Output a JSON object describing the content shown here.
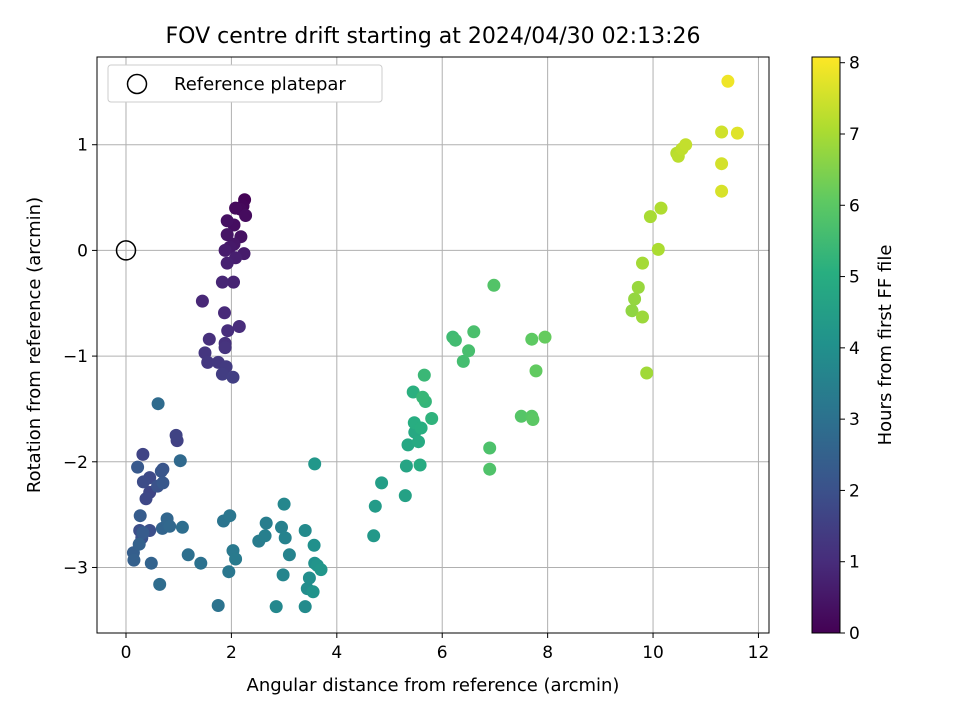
{
  "chart_data": {
    "type": "scatter",
    "title": "FOV centre drift starting at 2024/04/30 02:13:26",
    "xlabel": "Angular distance from reference (arcmin)",
    "ylabel": "Rotation from reference (arcmin)",
    "colorbar_label": "Hours from first FF file",
    "xlim": [
      -0.55,
      12.2
    ],
    "ylim": [
      -3.62,
      1.83
    ],
    "xticks": [
      0,
      2,
      4,
      6,
      8,
      10,
      12
    ],
    "xtick_labels": [
      "0",
      "2",
      "4",
      "6",
      "8",
      "10",
      "12"
    ],
    "yticks": [
      -3,
      -2,
      -1,
      0,
      1
    ],
    "ytick_labels": [
      "−3",
      "−2",
      "−1",
      "0",
      "1"
    ],
    "clim": [
      0,
      8.08
    ],
    "cticks": [
      0,
      1,
      2,
      3,
      4,
      5,
      6,
      7,
      8
    ],
    "ctick_labels": [
      "0",
      "1",
      "2",
      "3",
      "4",
      "5",
      "6",
      "7",
      "8"
    ],
    "colormap": "viridis",
    "grid": true,
    "legend": {
      "placement": "top-left",
      "entries": [
        "Reference platepar"
      ]
    },
    "reference_point": {
      "x": 0,
      "y": 0,
      "label": "Reference platepar"
    },
    "points": [
      [
        2.25,
        0.48,
        0.05
      ],
      [
        2.22,
        0.42,
        0.1
      ],
      [
        2.17,
        0.39,
        0.15
      ],
      [
        2.08,
        0.4,
        0.2
      ],
      [
        2.27,
        0.33,
        0.25
      ],
      [
        2.05,
        0.24,
        0.3
      ],
      [
        1.92,
        0.28,
        0.35
      ],
      [
        2.18,
        0.13,
        0.4
      ],
      [
        1.92,
        0.15,
        0.45
      ],
      [
        2.05,
        0.06,
        0.5
      ],
      [
        1.97,
        0.03,
        0.55
      ],
      [
        2.24,
        -0.03,
        0.6
      ],
      [
        1.88,
        0.0,
        0.65
      ],
      [
        2.08,
        -0.07,
        0.7
      ],
      [
        1.92,
        -0.12,
        0.75
      ],
      [
        2.04,
        -0.3,
        0.8
      ],
      [
        1.83,
        -0.3,
        0.85
      ],
      [
        1.45,
        -0.48,
        0.9
      ],
      [
        1.87,
        -0.59,
        0.95
      ],
      [
        2.15,
        -0.72,
        1.0
      ],
      [
        1.93,
        -0.76,
        1.05
      ],
      [
        1.58,
        -0.84,
        1.1
      ],
      [
        1.88,
        -0.88,
        1.15
      ],
      [
        1.88,
        -0.92,
        1.2
      ],
      [
        1.5,
        -0.97,
        1.25
      ],
      [
        1.55,
        -1.06,
        1.3
      ],
      [
        1.75,
        -1.06,
        1.35
      ],
      [
        1.9,
        -1.1,
        1.4
      ],
      [
        1.83,
        -1.17,
        1.45
      ],
      [
        2.03,
        -1.2,
        1.5
      ],
      [
        0.97,
        -1.8,
        1.55
      ],
      [
        0.95,
        -1.75,
        1.6
      ],
      [
        0.32,
        -1.93,
        1.65
      ],
      [
        0.45,
        -2.29,
        1.7
      ],
      [
        0.38,
        -2.35,
        1.75
      ],
      [
        0.45,
        -2.15,
        1.8
      ],
      [
        0.33,
        -2.19,
        1.85
      ],
      [
        0.26,
        -2.65,
        1.9
      ],
      [
        0.45,
        -2.65,
        1.95
      ],
      [
        0.3,
        -2.72,
        2.0
      ],
      [
        0.6,
        -2.23,
        2.05
      ],
      [
        0.7,
        -2.07,
        2.1
      ],
      [
        0.67,
        -2.09,
        2.15
      ],
      [
        0.7,
        -2.2,
        2.2
      ],
      [
        0.22,
        -2.05,
        2.25
      ],
      [
        0.32,
        -2.67,
        2.3
      ],
      [
        0.27,
        -2.51,
        2.35
      ],
      [
        0.14,
        -2.86,
        2.4
      ],
      [
        0.15,
        -2.93,
        2.45
      ],
      [
        0.25,
        -2.78,
        2.5
      ],
      [
        0.48,
        -2.96,
        2.55
      ],
      [
        0.69,
        -2.63,
        2.6
      ],
      [
        0.78,
        -2.54,
        2.65
      ],
      [
        0.83,
        -2.61,
        2.7
      ],
      [
        1.03,
        -1.99,
        2.75
      ],
      [
        0.61,
        -1.45,
        2.8
      ],
      [
        0.64,
        -3.16,
        2.85
      ],
      [
        1.07,
        -2.62,
        2.9
      ],
      [
        1.18,
        -2.88,
        2.95
      ],
      [
        1.42,
        -2.96,
        3.0
      ],
      [
        1.75,
        -3.36,
        3.05
      ],
      [
        1.85,
        -2.56,
        3.1
      ],
      [
        1.97,
        -2.51,
        3.15
      ],
      [
        1.95,
        -3.04,
        3.2
      ],
      [
        2.03,
        -2.84,
        3.25
      ],
      [
        2.08,
        -2.92,
        3.3
      ],
      [
        2.52,
        -2.75,
        3.35
      ],
      [
        2.66,
        -2.58,
        3.4
      ],
      [
        2.64,
        -2.7,
        3.45
      ],
      [
        2.95,
        -2.62,
        3.5
      ],
      [
        3.02,
        -2.72,
        3.55
      ],
      [
        3.1,
        -2.88,
        3.6
      ],
      [
        2.98,
        -3.07,
        3.65
      ],
      [
        3.0,
        -2.4,
        3.7
      ],
      [
        2.85,
        -3.37,
        3.75
      ],
      [
        3.4,
        -2.65,
        3.8
      ],
      [
        3.4,
        -3.37,
        3.85
      ],
      [
        3.44,
        -3.2,
        3.9
      ],
      [
        3.48,
        -3.1,
        3.95
      ],
      [
        3.57,
        -2.79,
        4.0
      ],
      [
        3.58,
        -2.96,
        4.05
      ],
      [
        3.55,
        -3.23,
        4.1
      ],
      [
        3.63,
        -2.98,
        4.15
      ],
      [
        3.7,
        -3.02,
        4.2
      ],
      [
        3.58,
        -2.02,
        4.25
      ],
      [
        4.7,
        -2.7,
        4.3
      ],
      [
        4.73,
        -2.42,
        4.4
      ],
      [
        4.85,
        -2.2,
        4.5
      ],
      [
        5.3,
        -2.32,
        4.6
      ],
      [
        5.32,
        -2.04,
        4.7
      ],
      [
        5.35,
        -1.84,
        4.8
      ],
      [
        5.48,
        -1.72,
        4.85
      ],
      [
        5.55,
        -1.81,
        4.9
      ],
      [
        5.58,
        -2.03,
        4.95
      ],
      [
        5.47,
        -1.63,
        5.0
      ],
      [
        5.6,
        -1.68,
        5.05
      ],
      [
        5.45,
        -1.34,
        5.1
      ],
      [
        5.8,
        -1.59,
        5.2
      ],
      [
        5.68,
        -1.43,
        5.3
      ],
      [
        5.63,
        -1.39,
        5.35
      ],
      [
        5.66,
        -1.18,
        5.4
      ],
      [
        6.2,
        -0.82,
        5.5
      ],
      [
        6.25,
        -0.85,
        5.55
      ],
      [
        6.4,
        -1.05,
        5.6
      ],
      [
        6.5,
        -0.95,
        5.65
      ],
      [
        6.6,
        -0.77,
        5.7
      ],
      [
        6.9,
        -1.87,
        5.75
      ],
      [
        6.9,
        -2.07,
        5.8
      ],
      [
        6.98,
        -0.33,
        5.85
      ],
      [
        7.5,
        -1.57,
        5.9
      ],
      [
        7.7,
        -1.57,
        5.95
      ],
      [
        7.72,
        -1.6,
        6.0
      ],
      [
        7.7,
        -0.84,
        6.05
      ],
      [
        7.78,
        -1.14,
        6.1
      ],
      [
        7.95,
        -0.82,
        6.15
      ],
      [
        9.6,
        -0.57,
        6.7
      ],
      [
        9.65,
        -0.46,
        6.75
      ],
      [
        9.72,
        -0.35,
        6.8
      ],
      [
        9.8,
        -0.63,
        6.85
      ],
      [
        9.88,
        -1.16,
        6.9
      ],
      [
        9.8,
        -0.12,
        6.95
      ],
      [
        9.95,
        0.32,
        7.0
      ],
      [
        10.1,
        0.01,
        7.05
      ],
      [
        10.15,
        0.4,
        7.1
      ],
      [
        10.45,
        0.92,
        7.2
      ],
      [
        10.48,
        0.89,
        7.25
      ],
      [
        10.55,
        0.96,
        7.3
      ],
      [
        10.62,
        1.0,
        7.35
      ],
      [
        11.3,
        1.12,
        7.5
      ],
      [
        11.3,
        0.82,
        7.55
      ],
      [
        11.3,
        0.56,
        7.6
      ],
      [
        11.6,
        1.11,
        7.7
      ],
      [
        11.42,
        1.6,
        7.9
      ]
    ]
  }
}
